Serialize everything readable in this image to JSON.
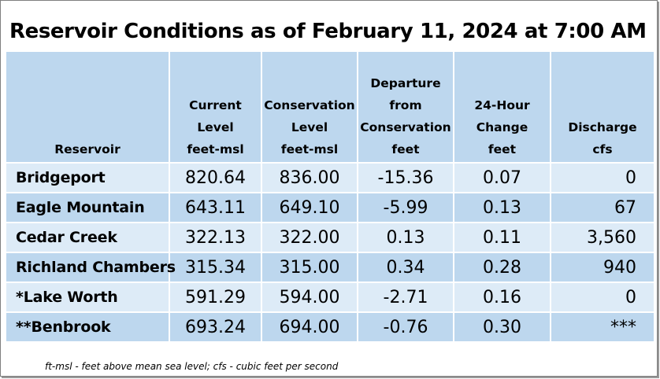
{
  "title": "Reservoir Conditions as of February 11, 2024 at 7:00 AM",
  "columns": [
    {
      "lines": [
        "Reservoir"
      ]
    },
    {
      "lines": [
        "Current",
        "Level",
        "feet-msl"
      ]
    },
    {
      "lines": [
        "Conservation",
        "Level",
        "feet-msl"
      ]
    },
    {
      "lines": [
        "Departure",
        "from",
        "Conservation",
        "feet"
      ]
    },
    {
      "lines": [
        "24-Hour",
        "Change",
        "feet"
      ]
    },
    {
      "lines": [
        "Discharge",
        "cfs"
      ]
    }
  ],
  "rows": [
    {
      "name": "Bridgeport",
      "current": "820.64",
      "conservation": "836.00",
      "departure": "-15.36",
      "change": "0.07",
      "discharge": "0"
    },
    {
      "name": "Eagle Mountain",
      "current": "643.11",
      "conservation": "649.10",
      "departure": "-5.99",
      "change": "0.13",
      "discharge": "67"
    },
    {
      "name": "Cedar Creek",
      "current": "322.13",
      "conservation": "322.00",
      "departure": "0.13",
      "change": "0.11",
      "discharge": "3,560"
    },
    {
      "name": "Richland Chambers",
      "current": "315.34",
      "conservation": "315.00",
      "departure": "0.34",
      "change": "0.28",
      "discharge": "940"
    },
    {
      "name": "*Lake Worth",
      "current": "591.29",
      "conservation": "594.00",
      "departure": "-2.71",
      "change": "0.16",
      "discharge": "0"
    },
    {
      "name": "**Benbrook",
      "current": "693.24",
      "conservation": "694.00",
      "departure": "-0.76",
      "change": "0.30",
      "discharge": "***"
    }
  ],
  "footnote": "ft-msl - feet above mean sea level; cfs - cubic feet per second"
}
